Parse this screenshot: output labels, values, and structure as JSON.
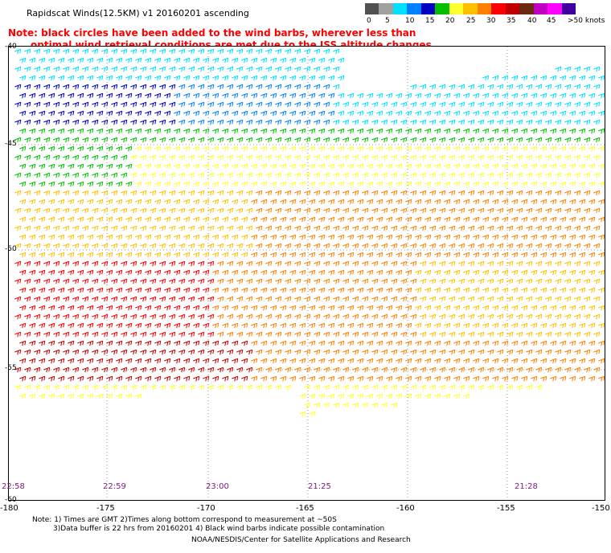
{
  "title": "Rapidscat Winds(12.5KM)  v1  20160201  ascending",
  "note_line1": "Note: black circles have been added to the wind barbs, wherever less than",
  "note_line2": "optimal wind retrieval conditions are met due to the ISS altitude changes.",
  "legend": {
    "labels": [
      "0",
      "5",
      "10",
      "15",
      "20",
      "25",
      "30",
      "35",
      "40",
      "45",
      ">50 knots"
    ],
    "colors": [
      "#505050",
      "#a0a0a0",
      "#00e0ff",
      "#0080ff",
      "#0000c0",
      "#00c000",
      "#ffff30",
      "#ffc000",
      "#ff8000",
      "#ff0000",
      "#c00000",
      "#6b2a10",
      "#c000c0",
      "#ff00ff",
      "#4000a0"
    ]
  },
  "lat_labels": [
    "-40",
    "-45",
    "-50",
    "-55",
    "-60"
  ],
  "lon_labels": [
    "-180",
    "-175",
    "-170",
    "-165",
    "-160",
    "-155",
    "-150"
  ],
  "time_labels": [
    "22:58",
    "22:59",
    "23:00",
    "21:25",
    "21:28"
  ],
  "footer": {
    "line1": "Note: 1) Times are GMT 2)Times along bottom correspond to measurement at ~50S",
    "line2": "3)Data buffer is 22 hrs from 20160201 4) Black wind barbs indicate possible contamination",
    "line3": "NOAA/NESDIS/Center for Satellite Applications and Research"
  }
}
